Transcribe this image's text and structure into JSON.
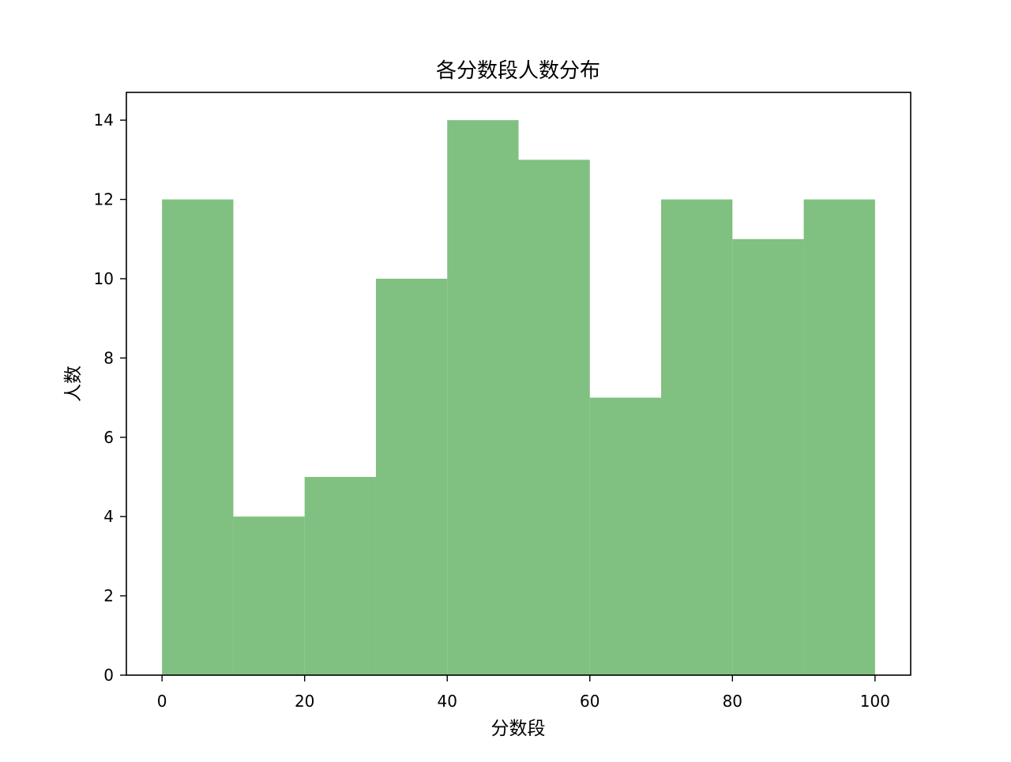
{
  "chart_data": {
    "type": "bar",
    "title": "各分数段人数分布",
    "xlabel": "分数段",
    "ylabel": "人数",
    "bin_edges": [
      0,
      10,
      20,
      30,
      40,
      50,
      60,
      70,
      80,
      90,
      100
    ],
    "values": [
      12,
      4,
      5,
      10,
      14,
      13,
      7,
      12,
      11,
      12
    ],
    "xlim": [
      -5,
      105
    ],
    "ylim": [
      0,
      14.7
    ],
    "x_ticks": [
      0,
      20,
      40,
      60,
      80,
      100
    ],
    "y_ticks": [
      0,
      2,
      4,
      6,
      8,
      10,
      12,
      14
    ],
    "bar_color": "#80c080",
    "grid": false,
    "legend": "none"
  }
}
